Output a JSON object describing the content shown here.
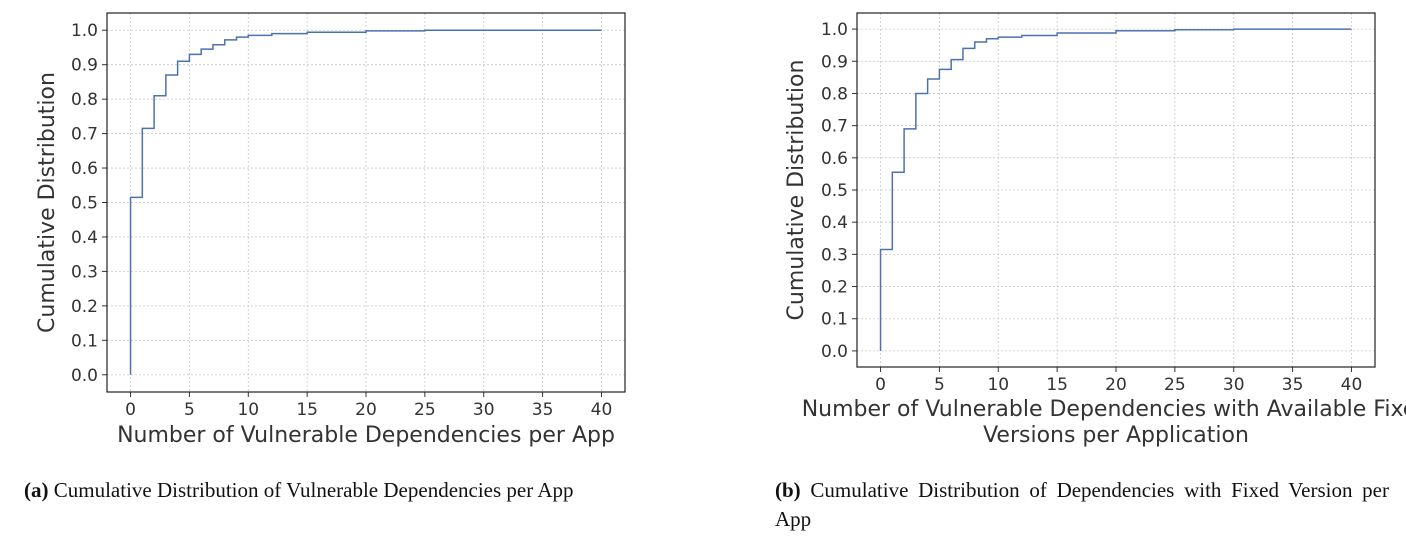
{
  "chart_data": [
    {
      "type": "step",
      "ylabel": "Cumulative Distribution",
      "xlabel": [
        "Number of Vulnerable Dependencies per App"
      ],
      "x": [
        0,
        0,
        1,
        2,
        3,
        4,
        5,
        6,
        7,
        8,
        9,
        10,
        12,
        15,
        20,
        25,
        40
      ],
      "values": [
        0,
        0.515,
        0.715,
        0.81,
        0.87,
        0.91,
        0.93,
        0.945,
        0.958,
        0.972,
        0.98,
        0.985,
        0.99,
        0.994,
        0.998,
        1,
        1
      ],
      "color": "#4c72b0",
      "xlim": [
        -2,
        42
      ],
      "ylim": [
        -0.05,
        1.05
      ],
      "xticks": [
        0,
        5,
        10,
        15,
        20,
        25,
        30,
        35,
        40
      ],
      "yticks": [
        {
          "value": 0,
          "label": "0.0"
        },
        0.1,
        0.2,
        0.3,
        0.4,
        0.5,
        0.6,
        0.7,
        0.8,
        0.9,
        {
          "value": 1,
          "label": "1.0"
        }
      ],
      "grid": true
    },
    {
      "type": "step",
      "ylabel": "Cumulative Distribution",
      "xlabel": [
        "Number of Vulnerable Dependencies with Available Fixed",
        "Versions per Application"
      ],
      "x": [
        0,
        0,
        1,
        2,
        3,
        4,
        5,
        6,
        7,
        8,
        9,
        10,
        12,
        15,
        20,
        25,
        30,
        40
      ],
      "values": [
        0,
        0.315,
        0.555,
        0.69,
        0.8,
        0.845,
        0.875,
        0.905,
        0.94,
        0.96,
        0.97,
        0.975,
        0.98,
        0.988,
        0.995,
        0.998,
        1,
        1
      ],
      "color": "#4c72b0",
      "xlim": [
        -2,
        42
      ],
      "ylim": [
        -0.05,
        1.05
      ],
      "xticks": [
        0,
        5,
        10,
        15,
        20,
        25,
        30,
        35,
        40
      ],
      "yticks": [
        {
          "value": 0,
          "label": "0.0"
        },
        0.1,
        0.2,
        0.3,
        0.4,
        0.5,
        0.6,
        0.7,
        0.8,
        0.9,
        {
          "value": 1,
          "label": "1.0"
        }
      ],
      "grid": true
    }
  ],
  "captions": [
    {
      "label": "(a)",
      "text": "Cumulative Distribution of Vulnerable Dependencies per App"
    },
    {
      "label": "(b)",
      "text": "Cumulative Distribution of Dependencies with Fixed Version per App"
    }
  ]
}
